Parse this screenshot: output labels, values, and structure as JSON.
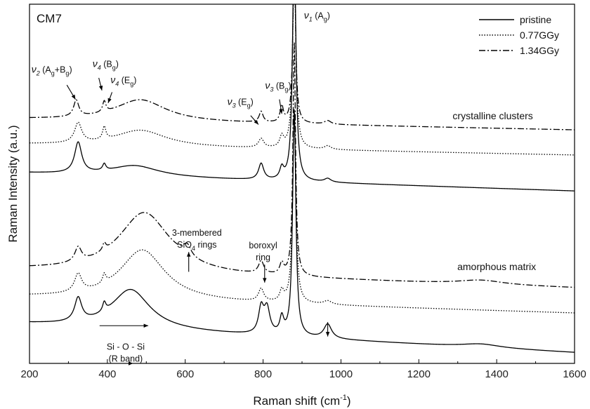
{
  "chart_data": {
    "type": "line",
    "title": "CM7",
    "xlabel": "Raman shift (cm",
    "xlabel_sup": "-1",
    "xlabel_end": ")",
    "ylabel": "Raman Intensity (a.u.)",
    "xlim": [
      200,
      1600
    ],
    "ylim": [
      0,
      10
    ],
    "y_ticks_shown": false,
    "x_ticks": [
      {
        "value": 200,
        "label": "200"
      },
      {
        "value": 400,
        "label": "400"
      },
      {
        "value": 600,
        "label": "600"
      },
      {
        "value": 800,
        "label": "800"
      },
      {
        "value": 1000,
        "label": "1000"
      },
      {
        "value": 1200,
        "label": "1200"
      },
      {
        "value": 1400,
        "label": "1400"
      },
      {
        "value": 1600,
        "label": "1600"
      }
    ],
    "legend": {
      "placement": "top-right",
      "entries": [
        {
          "label": "pristine",
          "style": "solid"
        },
        {
          "label": "0.77GGy",
          "style": "dotted"
        },
        {
          "label": "1.34GGy",
          "style": "dashdot"
        }
      ]
    },
    "groups": [
      {
        "label": "crystalline clusters",
        "x": 1390,
        "y": 6.8
      },
      {
        "label": "amorphous matrix",
        "x": 1400,
        "y": 2.6
      }
    ],
    "curve_model": {
      "pristine": {
        "style": "solid",
        "base_start": 5.3,
        "base_end": 4.8,
        "bands": [
          [
            325,
            0.85,
            11
          ],
          [
            392,
            0.18,
            5
          ],
          [
            470,
            0.3,
            75
          ],
          [
            795,
            0.45,
            8
          ],
          [
            848,
            0.3,
            6
          ],
          [
            880,
            6.8,
            5
          ],
          [
            966,
            0.1,
            10
          ]
        ]
      },
      "irr077": {
        "style": "dotted",
        "base_start": 6.1,
        "base_end": 5.8,
        "bands": [
          [
            325,
            0.55,
            11
          ],
          [
            392,
            0.35,
            5
          ],
          [
            485,
            0.45,
            80
          ],
          [
            795,
            0.25,
            8
          ],
          [
            848,
            0.3,
            6
          ],
          [
            880,
            5.0,
            5
          ],
          [
            966,
            0.1,
            10
          ]
        ]
      },
      "irr134": {
        "style": "dashdot",
        "base_start": 6.8,
        "base_end": 6.5,
        "bands": [
          [
            320,
            0.45,
            8
          ],
          [
            392,
            0.3,
            5
          ],
          [
            485,
            0.6,
            80
          ],
          [
            795,
            0.3,
            6
          ],
          [
            848,
            0.45,
            5
          ],
          [
            880,
            4.8,
            4
          ],
          [
            966,
            0.1,
            10
          ]
        ]
      },
      "am_pristine": {
        "style": "solid",
        "base_start": 1.1,
        "base_end": 0.3,
        "bands": [
          [
            325,
            0.65,
            11
          ],
          [
            392,
            0.25,
            5
          ],
          [
            460,
            1.1,
            60
          ],
          [
            795,
            0.7,
            8
          ],
          [
            810,
            0.7,
            9
          ],
          [
            848,
            0.45,
            6
          ],
          [
            880,
            6.3,
            5
          ],
          [
            966,
            0.4,
            12
          ],
          [
            1360,
            0.1,
            60
          ]
        ]
      },
      "am_irr077": {
        "style": "dotted",
        "base_start": 1.85,
        "base_end": 1.4,
        "bands": [
          [
            325,
            0.5,
            11
          ],
          [
            392,
            0.25,
            5
          ],
          [
            490,
            1.4,
            70
          ],
          [
            795,
            0.35,
            8
          ],
          [
            848,
            0.3,
            6
          ],
          [
            880,
            5.2,
            5
          ],
          [
            966,
            0.1,
            12
          ]
        ]
      },
      "am_irr134": {
        "style": "dashdot",
        "base_start": 2.6,
        "base_end": 2.1,
        "bands": [
          [
            325,
            0.4,
            10
          ],
          [
            392,
            0.2,
            5
          ],
          [
            495,
            1.7,
            80
          ],
          [
            605,
            0.3,
            12
          ],
          [
            795,
            0.35,
            8
          ],
          [
            848,
            0.3,
            6
          ],
          [
            880,
            6.5,
            4
          ],
          [
            1360,
            0.12,
            70
          ]
        ]
      }
    },
    "annotations": [
      {
        "id": "v1",
        "label": "(A",
        "sub": "g",
        "end": ")",
        "nu": "ν",
        "nu_sub": "1",
        "x": 905,
        "y": 9.6
      },
      {
        "id": "v2",
        "label": "(A",
        "sub": "g",
        "mid": "+B",
        "sub2": "g",
        "end": ")",
        "nu": "ν",
        "nu_sub": "2",
        "x": 205,
        "y": 8.1
      },
      {
        "id": "v4b",
        "label": "(B",
        "sub": "g",
        "end": ")",
        "nu": "ν",
        "nu_sub": "4",
        "x": 362,
        "y": 8.25
      },
      {
        "id": "v4e",
        "label": "(E",
        "sub": "g",
        "end": ")",
        "nu": "ν",
        "nu_sub": "4",
        "x": 408,
        "y": 7.8
      },
      {
        "id": "v3e",
        "label": "(E",
        "sub": "g",
        "end": ")",
        "nu": "ν",
        "nu_sub": "3",
        "x": 708,
        "y": 7.2
      },
      {
        "id": "v3b",
        "label": "(B",
        "sub": "g",
        "end": ")",
        "nu": "ν",
        "nu_sub": "3",
        "x": 805,
        "y": 7.65
      },
      {
        "id": "rings",
        "label": "3-membered",
        "line2": "SiO",
        "line2_sub": "4",
        "line2_end": " rings",
        "x": 630,
        "y": 3.55
      },
      {
        "id": "boroxyl",
        "label": "boroxyl",
        "line2": "ring",
        "x": 800,
        "y": 3.2
      },
      {
        "id": "rband",
        "label": "Si - O - Si",
        "line2": "(R band)",
        "x": 447,
        "y": 0.38
      }
    ]
  }
}
